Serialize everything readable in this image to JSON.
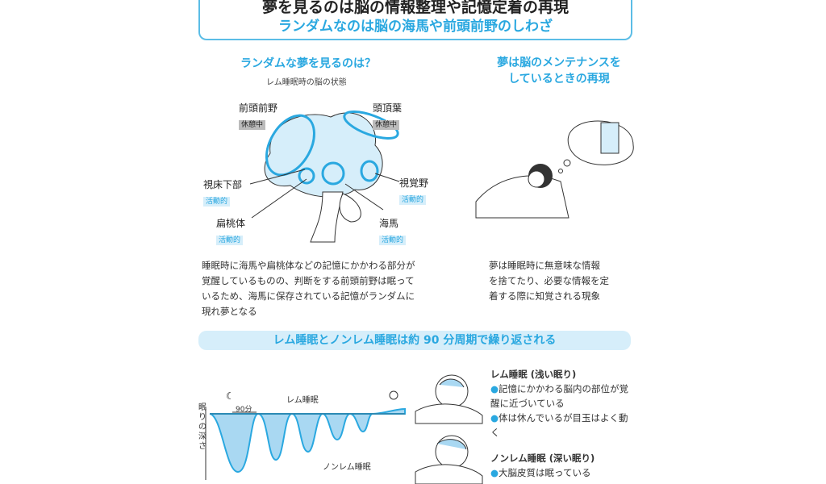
{
  "header": {
    "title": "夢を見るのは脳の情報整理や記憶定着の再現",
    "subtitle": "ランダムなのは脳の海馬や前頭前野のしわざ"
  },
  "left": {
    "heading": "ランダムな夢を見るのは？",
    "caption": "レム睡眠時の脳の状態",
    "labels": [
      {
        "name": "前頭前野",
        "state": "休憩中"
      },
      {
        "name": "頭頂葉",
        "state": "休憩中"
      },
      {
        "name": "視床下部",
        "state": "活動的"
      },
      {
        "name": "視覚野",
        "state": "活動的"
      },
      {
        "name": "扁桃体",
        "state": "活動的"
      },
      {
        "name": "海馬",
        "state": "活動的"
      }
    ],
    "body": [
      "睡眠時に海馬や扁桃体などの記憶にかかわる部分が",
      "覚醒しているものの、判断をする前頭前野は眠って",
      "いるため、海馬に保存されている記憶がランダムに",
      "現れ夢となる"
    ]
  },
  "right": {
    "heading": [
      "夢は脳のメンテナンスを",
      "しているときの再現"
    ],
    "body": [
      "夢は睡眠時に無意味な情報",
      "を捨てたり、必要な情報を定",
      "着する際に知覚される現象"
    ]
  },
  "banner": "レム睡眠とノンレム睡眠は約 90 分周期で繰り返される",
  "graph": {
    "ylabel": "眠りの深さ",
    "period": "90分",
    "rem": "レム睡眠",
    "nonrem": "ノンレム睡眠"
  },
  "legend": {
    "rem_title": "レム睡眠 (浅い眠り)",
    "rem_items": [
      "記憶にかかわる脳内の部位が覚醒に近づいている",
      "体は休んでいるが目玉はよく動く"
    ],
    "nonrem_title": "ノンレム睡眠 (深い眠り)",
    "nonrem_items": [
      "大脳皮質は眠っている"
    ]
  },
  "colors": {
    "accent": "#2aa8e0",
    "light": "#d6eefa"
  }
}
